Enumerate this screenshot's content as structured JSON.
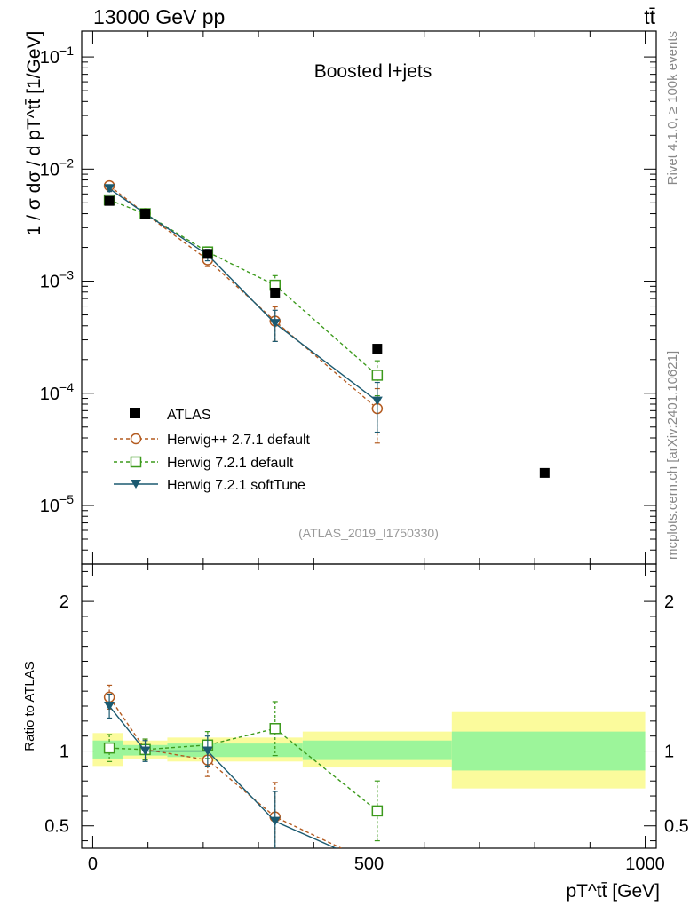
{
  "header": {
    "left": "13000 GeV pp",
    "right": "tt̄"
  },
  "side_labels": {
    "rivet": "Rivet 4.1.0, ≥ 100k events",
    "mcplots": "mcplots.cern.ch [arXiv:2401.10621]"
  },
  "axis_labels": {
    "y_main": "1 / σ dσ / d pT^tt̄ [1/GeV]",
    "y_ratio": "Ratio to ATLAS",
    "x": "pT^tt̄ [GeV]"
  },
  "chart_data": [
    {
      "type": "scatter",
      "panel": "main",
      "title": "Boosted l+jets",
      "analysis_tag": "(ATLAS_2019_I1750330)",
      "yscale": "log",
      "xlim": [
        -20,
        1020
      ],
      "ylim": [
        3e-06,
        0.17
      ],
      "x_ticks": [
        0,
        500,
        1000
      ],
      "y_ticks": [
        {
          "value": 0.1,
          "base": "10",
          "exp": "−1"
        },
        {
          "value": 0.01,
          "base": "10",
          "exp": "−2"
        },
        {
          "value": 0.001,
          "base": "10",
          "exp": "−3"
        },
        {
          "value": 0.0001,
          "base": "10",
          "exp": "−4"
        },
        {
          "value": 1e-05,
          "base": "10",
          "exp": "−5"
        }
      ],
      "legend_position": "bottom-left",
      "series": [
        {
          "name": "ATLAS",
          "style": "data",
          "color": "#000000",
          "x": [
            30,
            95,
            208,
            330,
            515,
            818
          ],
          "y": [
            0.0052,
            0.004,
            0.00175,
            0.00079,
            0.00025,
            1.95e-05
          ],
          "yerr": [
            0.0002,
            0.00012,
            6e-05,
            4e-05,
            1e-05,
            1e-06
          ]
        },
        {
          "name": "Herwig++ 2.7.1 default",
          "style": "open-circle-dashed",
          "color": "#b35a1f",
          "x": [
            30,
            95,
            208,
            330,
            515
          ],
          "y": [
            0.0071,
            0.004,
            0.00155,
            0.00044,
            7.3e-05
          ],
          "yerr": [
            0.0004,
            0.0002,
            0.0002,
            0.00015,
            3.7e-05
          ]
        },
        {
          "name": "Herwig 7.2.1 default",
          "style": "open-square-dashed",
          "color": "#3c9a1c",
          "x": [
            30,
            95,
            208,
            330,
            515
          ],
          "y": [
            0.0053,
            0.004,
            0.00182,
            0.00092,
            0.000145
          ],
          "yerr": [
            0.0004,
            0.0002,
            0.0002,
            0.0002,
            5e-05
          ]
        },
        {
          "name": "Herwig 7.2.1 softTune",
          "style": "filled-triangle-solid",
          "color": "#1b5a70",
          "x": [
            30,
            95,
            208,
            330,
            515
          ],
          "y": [
            0.0067,
            0.004,
            0.00172,
            0.00042,
            8.5e-05
          ],
          "yerr": [
            0.0004,
            0.0002,
            0.0002,
            0.00013,
            4e-05
          ]
        }
      ]
    },
    {
      "type": "scatter",
      "panel": "ratio",
      "ylabel": "Ratio to ATLAS",
      "xlabel": "pT^tt̄ [GeV]",
      "xlim": [
        -20,
        1020
      ],
      "ylim": [
        0.35,
        2.25
      ],
      "x_ticks": [
        0,
        500,
        1000
      ],
      "y_ticks": [
        0.5,
        1,
        2
      ],
      "bands": [
        {
          "x": [
            0,
            55
          ],
          "inner": [
            0.95,
            1.07
          ],
          "outer": [
            0.9,
            1.12
          ]
        },
        {
          "x": [
            55,
            135
          ],
          "inner": [
            0.97,
            1.04
          ],
          "outer": [
            0.95,
            1.07
          ]
        },
        {
          "x": [
            135,
            380
          ],
          "inner": [
            0.96,
            1.05
          ],
          "outer": [
            0.93,
            1.09
          ]
        },
        {
          "x": [
            380,
            650
          ],
          "inner": [
            0.94,
            1.07
          ],
          "outer": [
            0.89,
            1.13
          ]
        },
        {
          "x": [
            650,
            1000
          ],
          "inner": [
            0.87,
            1.13
          ],
          "outer": [
            0.75,
            1.26
          ]
        }
      ],
      "band_colors": {
        "inner": "#9cf59a",
        "outer": "#fbfb9c"
      },
      "series": [
        {
          "name": "Herwig++ 2.7.1 default",
          "color": "#b35a1f",
          "style": "open-circle-dashed",
          "x": [
            30,
            95,
            208,
            330,
            450
          ],
          "y": [
            1.36,
            1.01,
            0.94,
            0.56,
            0.35
          ],
          "yerr": [
            0.08,
            0.07,
            0.11,
            0.23,
            0
          ]
        },
        {
          "name": "Herwig 7.2.1 default",
          "color": "#3c9a1c",
          "style": "open-square-dashed",
          "x": [
            30,
            95,
            208,
            330,
            515
          ],
          "y": [
            1.02,
            1.01,
            1.04,
            1.15,
            0.6
          ],
          "yerr": [
            0.09,
            0.07,
            0.09,
            0.18,
            0.2
          ]
        },
        {
          "name": "Herwig 7.2.1 softTune",
          "color": "#1b5a70",
          "style": "filled-triangle-solid",
          "x": [
            30,
            95,
            208,
            330,
            440
          ],
          "y": [
            1.3,
            1.0,
            1.0,
            0.53,
            0.35
          ],
          "yerr": [
            0.08,
            0.07,
            0.1,
            0.2,
            0
          ]
        }
      ]
    }
  ]
}
